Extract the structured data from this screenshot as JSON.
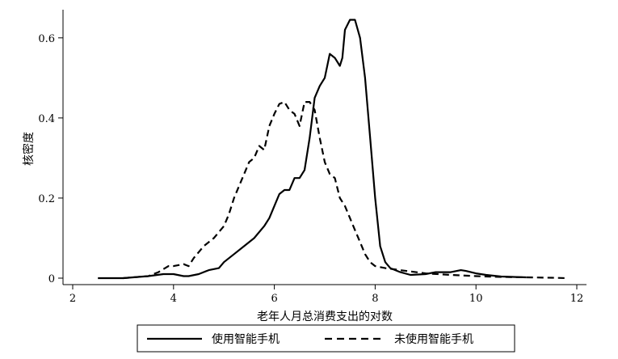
{
  "chart_data": {
    "type": "line",
    "title": "",
    "xlabel": "老年人月总消费支出的对数",
    "ylabel": "核密度",
    "xlim": [
      2,
      12
    ],
    "ylim": [
      0,
      0.65
    ],
    "xticks": [
      2,
      4,
      6,
      8,
      10,
      12
    ],
    "yticks": [
      0,
      0.2,
      0.4,
      0.6
    ],
    "xtick_labels": [
      "2",
      "4",
      "6",
      "8",
      "10",
      "12"
    ],
    "ytick_labels": [
      "0",
      "0.2",
      "0.4",
      "0.6"
    ],
    "grid": false,
    "legend_position": "bottom",
    "series": [
      {
        "name": "使用智能手机",
        "style": "solid",
        "color": "#000000",
        "x": [
          2.5,
          3.0,
          3.5,
          3.8,
          4.0,
          4.2,
          4.3,
          4.5,
          4.7,
          4.9,
          5.0,
          5.2,
          5.4,
          5.6,
          5.8,
          5.9,
          6.0,
          6.1,
          6.2,
          6.3,
          6.4,
          6.5,
          6.6,
          6.7,
          6.8,
          6.9,
          7.0,
          7.1,
          7.2,
          7.3,
          7.35,
          7.4,
          7.5,
          7.55,
          7.6,
          7.7,
          7.8,
          7.9,
          8.0,
          8.1,
          8.2,
          8.3,
          8.5,
          8.7,
          9.0,
          9.2,
          9.5,
          9.7,
          9.8,
          10.0,
          10.2,
          10.5,
          11.0
        ],
        "y": [
          0.0,
          0.0,
          0.005,
          0.01,
          0.01,
          0.005,
          0.005,
          0.01,
          0.02,
          0.025,
          0.04,
          0.06,
          0.08,
          0.1,
          0.13,
          0.15,
          0.18,
          0.21,
          0.22,
          0.22,
          0.25,
          0.25,
          0.27,
          0.35,
          0.45,
          0.48,
          0.5,
          0.56,
          0.55,
          0.53,
          0.55,
          0.62,
          0.645,
          0.645,
          0.645,
          0.6,
          0.5,
          0.35,
          0.2,
          0.08,
          0.04,
          0.025,
          0.015,
          0.008,
          0.01,
          0.015,
          0.015,
          0.02,
          0.018,
          0.012,
          0.008,
          0.004,
          0.002
        ]
      },
      {
        "name": "未使用智能手机",
        "style": "dashed",
        "color": "#000000",
        "x": [
          3.0,
          3.5,
          3.7,
          3.9,
          4.0,
          4.2,
          4.3,
          4.4,
          4.6,
          4.8,
          5.0,
          5.1,
          5.2,
          5.3,
          5.4,
          5.5,
          5.6,
          5.7,
          5.8,
          5.9,
          6.0,
          6.1,
          6.2,
          6.3,
          6.4,
          6.5,
          6.6,
          6.7,
          6.8,
          6.9,
          7.0,
          7.1,
          7.2,
          7.3,
          7.4,
          7.5,
          7.6,
          7.7,
          7.8,
          7.9,
          8.0,
          8.2,
          8.5,
          9.0,
          9.5,
          10.0,
          10.5,
          11.0,
          11.5,
          11.8
        ],
        "y": [
          0.0,
          0.005,
          0.015,
          0.03,
          0.03,
          0.035,
          0.03,
          0.05,
          0.08,
          0.1,
          0.13,
          0.16,
          0.2,
          0.23,
          0.26,
          0.29,
          0.3,
          0.33,
          0.32,
          0.38,
          0.41,
          0.435,
          0.44,
          0.42,
          0.41,
          0.38,
          0.44,
          0.44,
          0.42,
          0.35,
          0.29,
          0.26,
          0.25,
          0.2,
          0.18,
          0.15,
          0.12,
          0.09,
          0.06,
          0.04,
          0.03,
          0.025,
          0.02,
          0.012,
          0.008,
          0.005,
          0.003,
          0.002,
          0.001,
          0.0
        ]
      }
    ]
  }
}
